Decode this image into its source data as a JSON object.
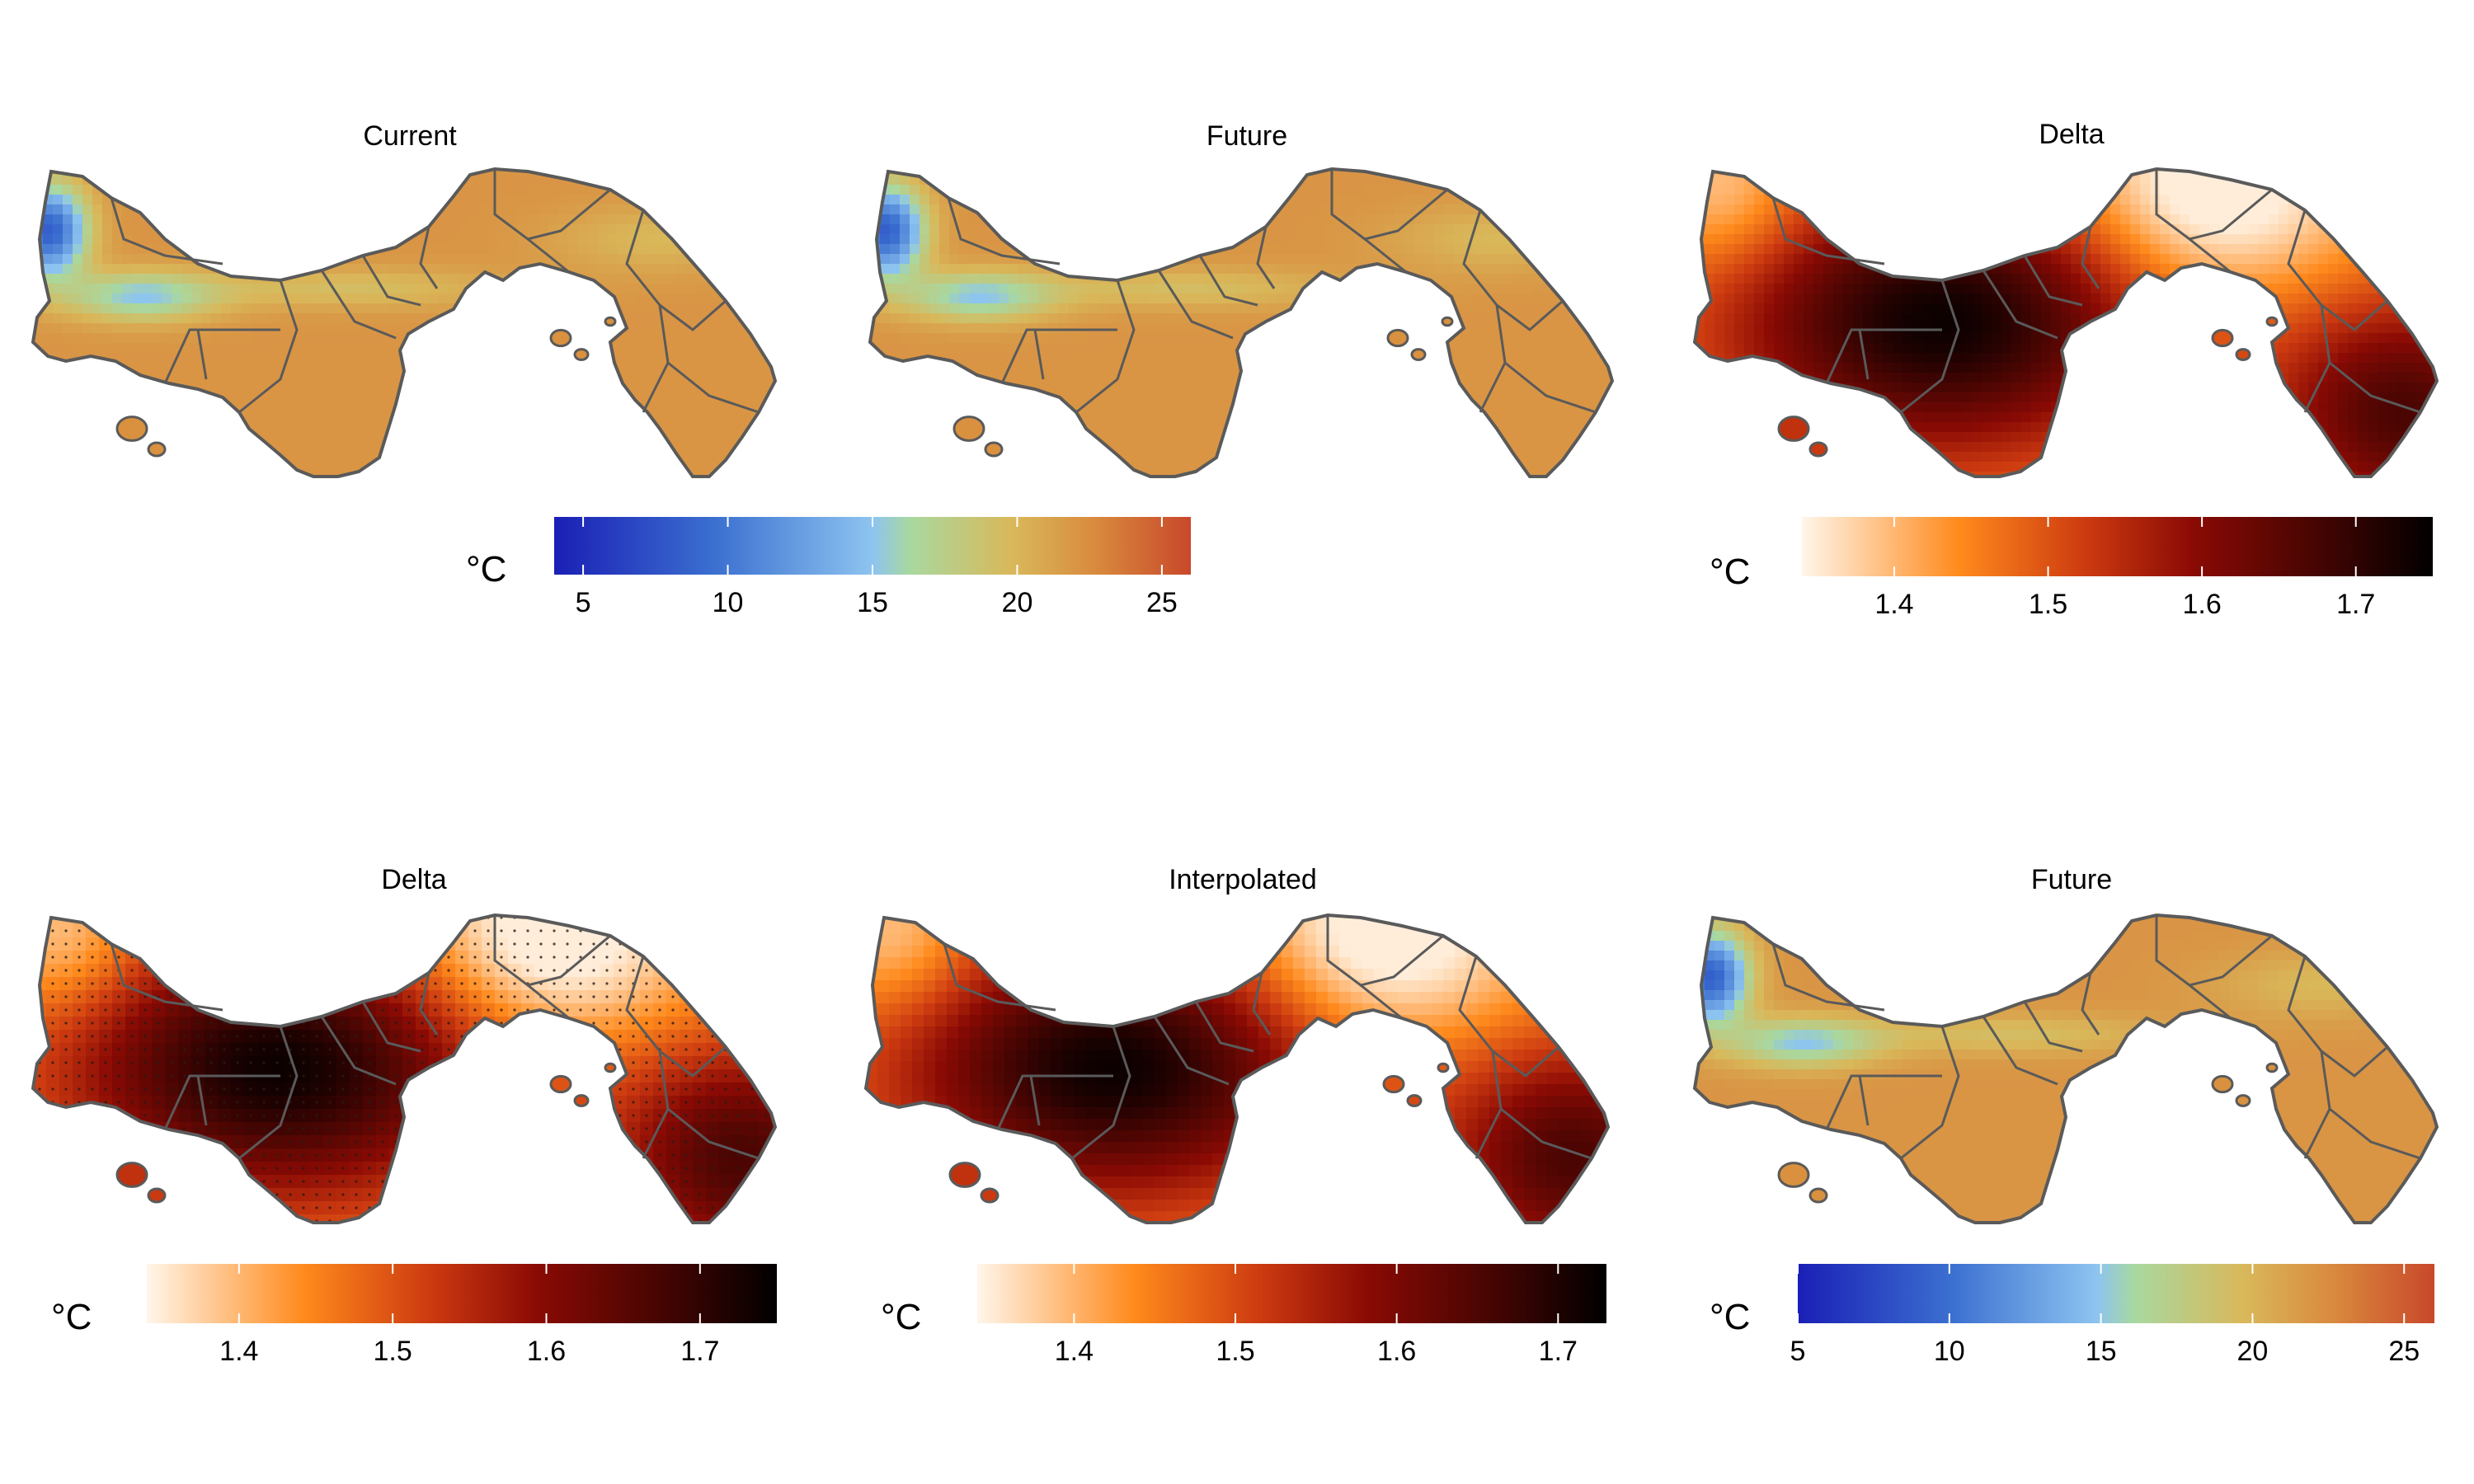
{
  "panels": [
    {
      "id": "current",
      "title": "Current",
      "scale": "temp"
    },
    {
      "id": "future",
      "title": "Future",
      "scale": "temp"
    },
    {
      "id": "delta",
      "title": "Delta",
      "scale": "delta",
      "style": "coarse"
    },
    {
      "id": "delta_points",
      "title": "Delta",
      "scale": "delta",
      "style": "points"
    },
    {
      "id": "interpolated",
      "title": "Interpolated",
      "scale": "delta",
      "style": "smooth"
    },
    {
      "id": "future_hires",
      "title": "Future",
      "scale": "temp"
    }
  ],
  "colorbars": [
    {
      "id": "temp-top",
      "unit": "°C",
      "range": [
        4,
        26
      ],
      "ticks": [
        {
          "value": 5,
          "label": "5"
        },
        {
          "value": 10,
          "label": "10"
        },
        {
          "value": 15,
          "label": "15"
        },
        {
          "value": 20,
          "label": "20"
        },
        {
          "value": 25,
          "label": "25"
        }
      ],
      "colors": [
        "#1a1fb5",
        "#3b6fd0",
        "#8dc4f0",
        "#a9d89f",
        "#d9b85a",
        "#d98a3e",
        "#c8482a"
      ],
      "stops": [
        0,
        0.25,
        0.5,
        0.56,
        0.72,
        0.85,
        1
      ]
    },
    {
      "id": "delta-top",
      "unit": "°C",
      "range": [
        1.34,
        1.75
      ],
      "ticks": [
        {
          "value": 1.4,
          "label": "1.4"
        },
        {
          "value": 1.5,
          "label": "1.5"
        },
        {
          "value": 1.6,
          "label": "1.6"
        },
        {
          "value": 1.7,
          "label": "1.7"
        }
      ],
      "colors": [
        "#fff6ea",
        "#ff8a1c",
        "#cc3a10",
        "#8a0a04",
        "#3a0402",
        "#000000"
      ],
      "stops": [
        0,
        0.25,
        0.45,
        0.62,
        0.85,
        1
      ]
    },
    {
      "id": "delta-bottom-left",
      "unit": "°C",
      "range": [
        1.34,
        1.75
      ],
      "ticks": [
        {
          "value": 1.4,
          "label": "1.4"
        },
        {
          "value": 1.5,
          "label": "1.5"
        },
        {
          "value": 1.6,
          "label": "1.6"
        },
        {
          "value": 1.7,
          "label": "1.7"
        }
      ],
      "colors": [
        "#fff6ea",
        "#ff8a1c",
        "#cc3a10",
        "#8a0a04",
        "#3a0402",
        "#000000"
      ],
      "stops": [
        0,
        0.25,
        0.45,
        0.62,
        0.85,
        1
      ]
    },
    {
      "id": "delta-bottom-mid",
      "unit": "°C",
      "range": [
        1.34,
        1.73
      ],
      "ticks": [
        {
          "value": 1.4,
          "label": "1.4"
        },
        {
          "value": 1.5,
          "label": "1.5"
        },
        {
          "value": 1.6,
          "label": "1.6"
        },
        {
          "value": 1.7,
          "label": "1.7"
        }
      ],
      "colors": [
        "#fff6ea",
        "#ff8a1c",
        "#cc3a10",
        "#8a0a04",
        "#3a0402",
        "#000000"
      ],
      "stops": [
        0,
        0.25,
        0.45,
        0.62,
        0.85,
        1
      ]
    },
    {
      "id": "temp-bottom",
      "unit": "°C",
      "range": [
        5,
        26
      ],
      "ticks": [
        {
          "value": 5,
          "label": "5"
        },
        {
          "value": 10,
          "label": "10"
        },
        {
          "value": 15,
          "label": "15"
        },
        {
          "value": 20,
          "label": "20"
        },
        {
          "value": 25,
          "label": "25"
        }
      ],
      "colors": [
        "#1a1fb5",
        "#3b6fd0",
        "#8dc4f0",
        "#a9d89f",
        "#d9b85a",
        "#d98a3e",
        "#c8482a"
      ],
      "stops": [
        0,
        0.24,
        0.47,
        0.53,
        0.7,
        0.84,
        1
      ]
    }
  ],
  "style": {
    "border_color": "#5a5a5a",
    "land_temp_color": "#d9913f",
    "land_temp_light": "#e0b24d"
  }
}
